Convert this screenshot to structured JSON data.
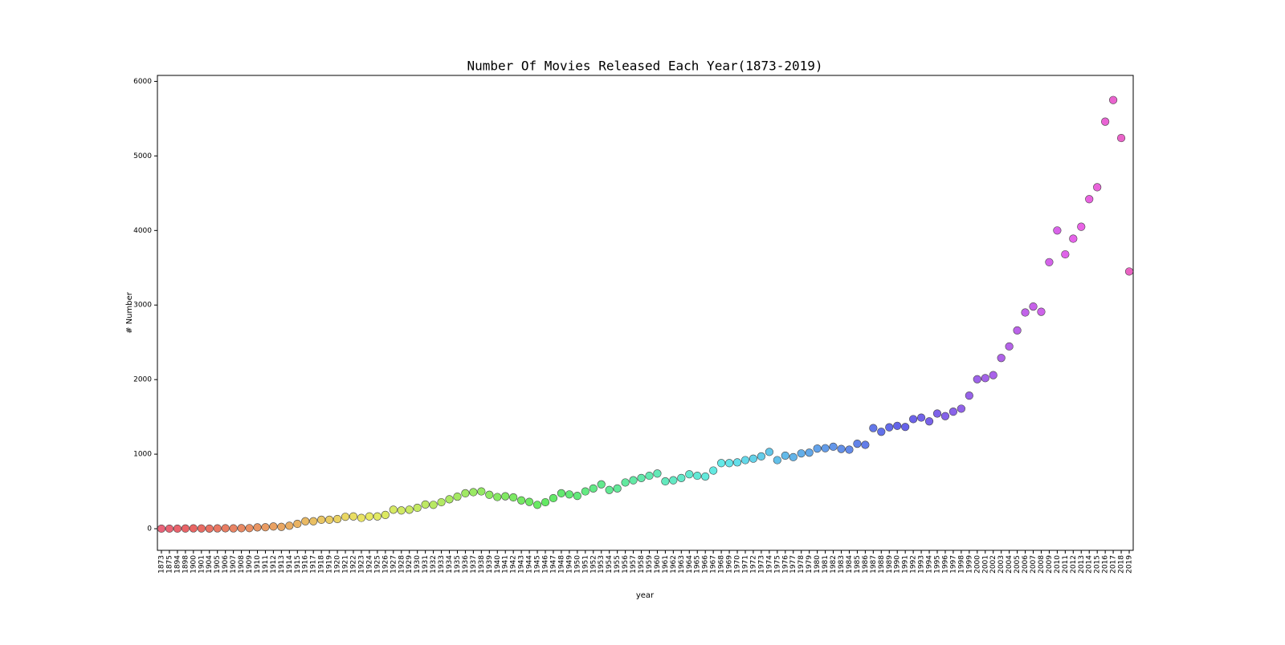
{
  "chart_data": {
    "type": "strip",
    "title": "Number Of Movies Released Each Year(1873-2019)",
    "x_label": "year",
    "y_label": "# Number",
    "categories": [
      "1873",
      "1875",
      "1894",
      "1898",
      "1900",
      "1901",
      "1904",
      "1905",
      "1906",
      "1907",
      "1908",
      "1909",
      "1910",
      "1911",
      "1912",
      "1913",
      "1914",
      "1915",
      "1916",
      "1917",
      "1918",
      "1919",
      "1920",
      "1921",
      "1922",
      "1923",
      "1924",
      "1925",
      "1926",
      "1927",
      "1928",
      "1929",
      "1930",
      "1931",
      "1932",
      "1933",
      "1934",
      "1935",
      "1936",
      "1937",
      "1938",
      "1939",
      "1940",
      "1941",
      "1942",
      "1943",
      "1944",
      "1945",
      "1946",
      "1947",
      "1948",
      "1949",
      "1950",
      "1951",
      "1952",
      "1953",
      "1954",
      "1955",
      "1956",
      "1957",
      "1958",
      "1959",
      "1960",
      "1961",
      "1962",
      "1963",
      "1964",
      "1965",
      "1966",
      "1967",
      "1968",
      "1969",
      "1970",
      "1971",
      "1972",
      "1973",
      "1974",
      "1975",
      "1976",
      "1977",
      "1978",
      "1979",
      "1980",
      "1981",
      "1982",
      "1983",
      "1984",
      "1985",
      "1986",
      "1987",
      "1988",
      "1989",
      "1990",
      "1991",
      "1992",
      "1993",
      "1994",
      "1995",
      "1996",
      "1997",
      "1998",
      "1999",
      "2000",
      "2001",
      "2002",
      "2003",
      "2004",
      "2005",
      "2006",
      "2007",
      "2008",
      "2009",
      "2010",
      "2011",
      "2012",
      "2013",
      "2014",
      "2015",
      "2016",
      "2017",
      "2018",
      "2019"
    ],
    "values": [
      1,
      1,
      1,
      3,
      5,
      4,
      2,
      5,
      6,
      5,
      7,
      8,
      18,
      20,
      30,
      25,
      40,
      65,
      100,
      100,
      120,
      120,
      130,
      160,
      165,
      145,
      165,
      165,
      185,
      255,
      245,
      255,
      280,
      325,
      320,
      355,
      395,
      430,
      475,
      490,
      500,
      455,
      425,
      435,
      420,
      380,
      360,
      320,
      355,
      410,
      475,
      460,
      440,
      500,
      540,
      595,
      520,
      540,
      620,
      650,
      680,
      710,
      740,
      635,
      650,
      680,
      730,
      710,
      700,
      780,
      880,
      880,
      890,
      920,
      940,
      970,
      1030,
      920,
      980,
      960,
      1010,
      1020,
      1075,
      1080,
      1100,
      1070,
      1060,
      1140,
      1125,
      1350,
      1300,
      1360,
      1380,
      1365,
      1470,
      1490,
      1440,
      1545,
      1510,
      1570,
      1610,
      1785,
      2005,
      2020,
      2060,
      2290,
      2445,
      2660,
      2900,
      2980,
      2910,
      3575,
      4000,
      3680,
      3890,
      4050,
      4420,
      4580,
      5460,
      5750,
      5240,
      3450
    ],
    "palette": "husl",
    "edge_color": "#444444",
    "ylim": [
      -290,
      6080
    ],
    "yticks": [
      0,
      1000,
      2000,
      3000,
      4000,
      5000,
      6000
    ]
  }
}
